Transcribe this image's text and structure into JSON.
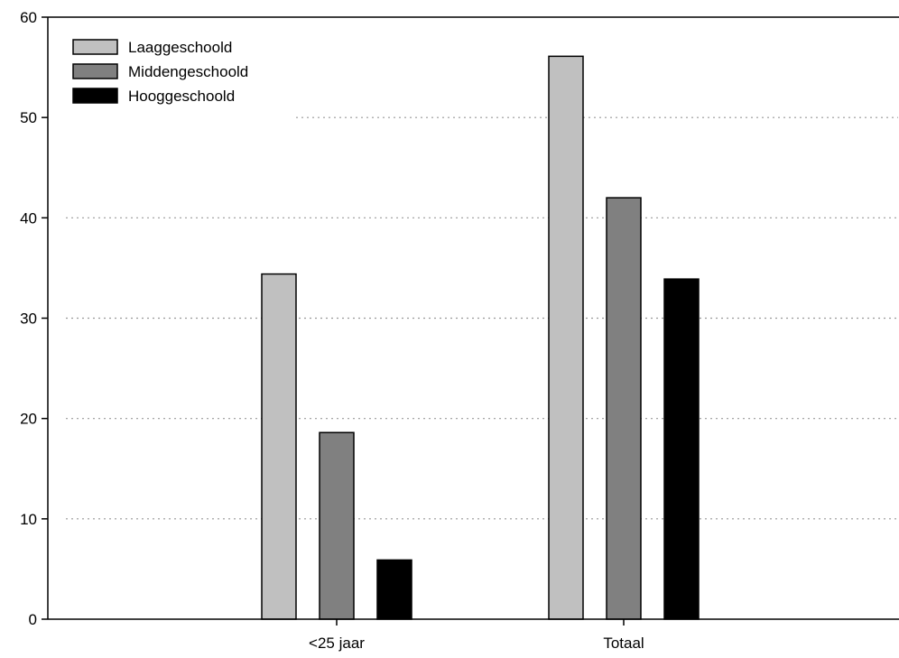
{
  "chart_data": {
    "type": "bar",
    "categories": [
      "<25 jaar",
      "Totaal"
    ],
    "series": [
      {
        "name": "Laaggeschoold",
        "values": [
          34.4,
          56.1
        ],
        "color": "#c0c0c0"
      },
      {
        "name": "Middengeschoold",
        "values": [
          18.6,
          42.0
        ],
        "color": "#808080"
      },
      {
        "name": "Hooggeschoold",
        "values": [
          5.9,
          33.9
        ],
        "color": "#000000"
      }
    ],
    "ylim": [
      0,
      60
    ],
    "yticks": [
      0,
      10,
      20,
      30,
      40,
      50,
      60
    ],
    "grid": "horizontal dotted",
    "legend_position": "top-left",
    "title": "",
    "xlabel": "",
    "ylabel": ""
  }
}
